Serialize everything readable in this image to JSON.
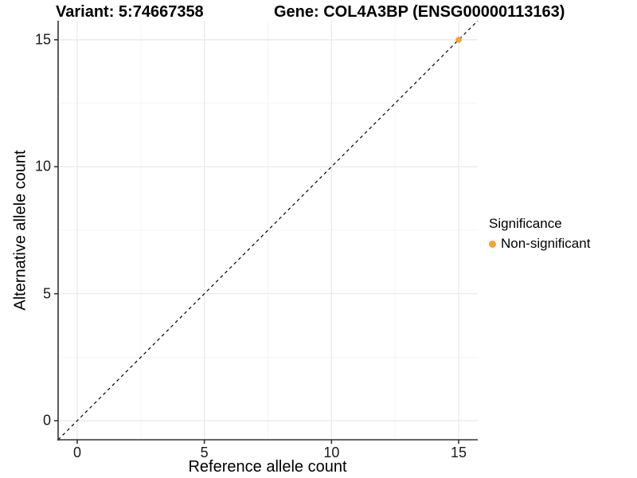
{
  "figure": {
    "background": "#FFFFFF"
  },
  "titles": {
    "variant": "Variant: 5:74667358",
    "gene": "Gene: COL4A3BP (ENSG00000113163)"
  },
  "axes": {
    "x": {
      "title": "Reference allele count"
    },
    "y": {
      "title": "Alternative allele count"
    }
  },
  "legend": {
    "title": "Significance",
    "items": [
      {
        "label": "Non-significant",
        "color": "#F9A132"
      }
    ]
  },
  "chart_data": {
    "type": "scatter",
    "title_left": "Variant: 5:74667358",
    "title_right": "Gene: COL4A3BP (ENSG00000113163)",
    "xlabel": "Reference allele count",
    "ylabel": "Alternative allele count",
    "xlim": [
      -0.75,
      15.75
    ],
    "ylim": [
      -0.75,
      15.75
    ],
    "x_ticks": [
      0,
      5,
      10,
      15
    ],
    "y_ticks": [
      0,
      5,
      10,
      15
    ],
    "x_minor_ticks": [
      2.5,
      7.5,
      12.5
    ],
    "y_minor_ticks": [
      2.5,
      7.5,
      12.5
    ],
    "grid": "on",
    "legend_position": "right",
    "series": [
      {
        "name": "Non-significant",
        "color": "#F9A132",
        "points": [
          {
            "x": 15,
            "y": 15
          }
        ]
      }
    ],
    "reference_line": {
      "type": "identity y=x",
      "style": "dashed",
      "color": "#000000"
    },
    "colors": {
      "point": "#F9A132",
      "grid_major": "#E7E7E7",
      "grid_minor": "#F2F2F2",
      "axis": "#333333",
      "tick_text": "#1a1a1a",
      "dashed_line": "#000000"
    }
  }
}
